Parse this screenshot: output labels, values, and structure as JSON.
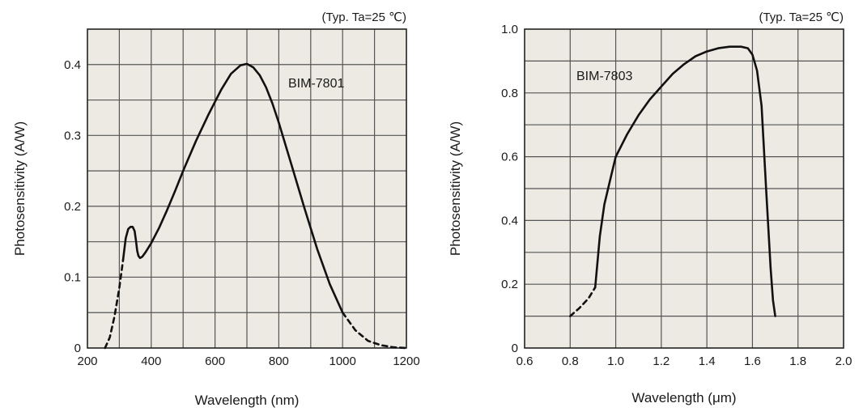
{
  "chart_data": [
    {
      "type": "line",
      "title": "",
      "note": "(Typ. Ta=25 ℃)",
      "series_label": "BIM-7801",
      "xlabel": "Wavelength (nm)",
      "ylabel": "Photosensitivity (A/W)",
      "xlim": [
        200,
        1200
      ],
      "ylim": [
        0,
        0.45
      ],
      "xticks": [
        200,
        400,
        600,
        800,
        1000,
        1200
      ],
      "yticks": [
        0,
        0.1,
        0.2,
        0.3,
        0.4
      ],
      "ytick_labels": [
        "0",
        "0.1",
        "0.2",
        "0.3",
        "0.4"
      ],
      "grid": true,
      "background": "#edeae3",
      "line_color": "#111111",
      "series": [
        {
          "style": "dashed",
          "x": [
            255,
            270,
            285,
            300,
            312
          ],
          "y": [
            0.0,
            0.015,
            0.045,
            0.085,
            0.125
          ]
        },
        {
          "style": "solid",
          "x": [
            312,
            320,
            328,
            335,
            342,
            348,
            352,
            356,
            360,
            365,
            372,
            382,
            400,
            425,
            450,
            475,
            500,
            540,
            580,
            620,
            650,
            680,
            700,
            720,
            740,
            760,
            780,
            800,
            840,
            880,
            920,
            960,
            1000
          ],
          "y": [
            0.125,
            0.155,
            0.168,
            0.171,
            0.171,
            0.165,
            0.152,
            0.137,
            0.13,
            0.127,
            0.129,
            0.135,
            0.148,
            0.17,
            0.195,
            0.222,
            0.25,
            0.292,
            0.33,
            0.365,
            0.387,
            0.399,
            0.401,
            0.396,
            0.385,
            0.368,
            0.345,
            0.318,
            0.258,
            0.198,
            0.14,
            0.09,
            0.05
          ]
        },
        {
          "style": "dashed",
          "x": [
            1000,
            1040,
            1080,
            1120,
            1160,
            1200
          ],
          "y": [
            0.05,
            0.025,
            0.01,
            0.004,
            0.001,
            0.0
          ]
        }
      ]
    },
    {
      "type": "line",
      "title": "",
      "note": "(Typ. Ta=25 ℃)",
      "series_label": "BIM-7803",
      "xlabel": "Wavelength (μm)",
      "ylabel": "Photosensitivity (A/W)",
      "xlim": [
        0.6,
        2.0
      ],
      "ylim": [
        0,
        1.0
      ],
      "xticks": [
        0.6,
        0.8,
        1.0,
        1.2,
        1.4,
        1.6,
        1.8,
        2.0
      ],
      "yticks": [
        0,
        0.2,
        0.4,
        0.6,
        0.8,
        1.0
      ],
      "ytick_labels": [
        "0",
        "0.2",
        "0.4",
        "0.6",
        "0.8",
        "1.0"
      ],
      "grid": true,
      "background": "#edeae3",
      "line_color": "#111111",
      "series": [
        {
          "style": "dashed",
          "x": [
            0.8,
            0.84,
            0.88,
            0.91
          ],
          "y": [
            0.1,
            0.125,
            0.155,
            0.19
          ]
        },
        {
          "style": "solid",
          "x": [
            0.91,
            0.93,
            0.95,
            0.98,
            1.0,
            1.05,
            1.1,
            1.15,
            1.2,
            1.25,
            1.3,
            1.35,
            1.4,
            1.45,
            1.5,
            1.55,
            1.58,
            1.6,
            1.62,
            1.64,
            1.66,
            1.68,
            1.69,
            1.7
          ],
          "y": [
            0.19,
            0.35,
            0.45,
            0.54,
            0.6,
            0.67,
            0.73,
            0.78,
            0.82,
            0.86,
            0.89,
            0.915,
            0.93,
            0.94,
            0.945,
            0.945,
            0.94,
            0.92,
            0.87,
            0.76,
            0.5,
            0.25,
            0.15,
            0.1
          ]
        }
      ]
    }
  ]
}
